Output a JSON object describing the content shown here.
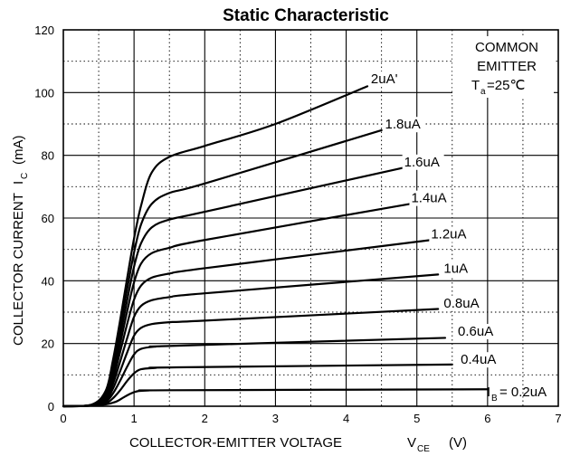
{
  "chart_data": {
    "type": "line",
    "title": "Static Characteristic",
    "xlabel": {
      "main": "COLLECTOR-EMITTER VOLTAGE",
      "symbol": "V",
      "subscript": "CE",
      "unit": "(V)"
    },
    "ylabel": {
      "main": "COLLECTOR CURRENT",
      "symbol": "I",
      "subscript": "C",
      "unit": "(mA)"
    },
    "xlim": [
      0,
      7
    ],
    "ylim": [
      0,
      120
    ],
    "xticks": [
      0,
      1,
      2,
      3,
      4,
      5,
      6,
      7
    ],
    "yticks": [
      0,
      20,
      40,
      60,
      80,
      100,
      120
    ],
    "grid": true,
    "annotation": {
      "line1": "COMMON",
      "line2": "EMITTER",
      "temp_symbol": "T",
      "temp_subscript": "a",
      "temp_value": "=25℃"
    },
    "ib_label": {
      "symbol": "I",
      "subscript": "B",
      "value": "= 0.2uA"
    },
    "series": [
      {
        "name": "0.2uA",
        "label": "",
        "x": [
          0,
          0.4,
          0.6,
          0.75,
          0.85,
          0.95,
          1.05,
          1.2,
          1.5,
          6.0
        ],
        "y": [
          0,
          0.2,
          0.6,
          1.5,
          2.8,
          4.0,
          4.8,
          5.0,
          5.1,
          5.4
        ]
      },
      {
        "name": "0.4uA",
        "label": "0.4uA",
        "x": [
          0,
          0.4,
          0.6,
          0.7,
          0.8,
          0.9,
          1.0,
          1.1,
          1.3,
          1.6,
          5.5
        ],
        "y": [
          0,
          0.2,
          1.0,
          2.5,
          5.0,
          8.0,
          10.5,
          11.8,
          12.2,
          12.4,
          13.3
        ]
      },
      {
        "name": "0.6uA",
        "label": "0.6uA",
        "x": [
          0,
          0.4,
          0.6,
          0.7,
          0.8,
          0.9,
          1.0,
          1.1,
          1.3,
          1.6,
          5.4
        ],
        "y": [
          0,
          0.2,
          1.5,
          4.0,
          8.0,
          12.5,
          16.5,
          18.3,
          19.0,
          19.3,
          21.8
        ]
      },
      {
        "name": "0.8uA",
        "label": "0.8uA",
        "x": [
          0,
          0.4,
          0.6,
          0.7,
          0.8,
          0.9,
          1.0,
          1.1,
          1.25,
          1.5,
          2.0,
          5.3
        ],
        "y": [
          0,
          0.3,
          2.0,
          5.5,
          11.0,
          17.0,
          22.5,
          25.0,
          26.2,
          26.8,
          27.3,
          31.0
        ]
      },
      {
        "name": "1uA",
        "label": "1uA",
        "x": [
          0,
          0.4,
          0.6,
          0.7,
          0.8,
          0.9,
          1.0,
          1.1,
          1.25,
          1.5,
          2.0,
          5.3
        ],
        "y": [
          0,
          0.3,
          2.5,
          7.0,
          14.0,
          21.5,
          28.5,
          32.0,
          33.8,
          34.8,
          36.0,
          42.0
        ]
      },
      {
        "name": "1.2uA",
        "label": "1.2uA",
        "x": [
          0,
          0.4,
          0.6,
          0.7,
          0.8,
          0.9,
          1.0,
          1.1,
          1.25,
          1.5,
          2.0,
          5.2
        ],
        "y": [
          0,
          0.4,
          3.0,
          8.5,
          17.0,
          26.0,
          34.0,
          38.5,
          41.0,
          42.3,
          44.0,
          53.0
        ]
      },
      {
        "name": "1.4uA",
        "label": "1.4uA",
        "x": [
          0,
          0.4,
          0.6,
          0.7,
          0.8,
          0.9,
          1.0,
          1.1,
          1.25,
          1.5,
          2.0,
          4.9
        ],
        "y": [
          0,
          0.4,
          3.5,
          10.0,
          19.5,
          30.0,
          39.5,
          45.5,
          48.8,
          50.5,
          53.0,
          64.5
        ]
      },
      {
        "name": "1.6uA",
        "label": "1.6uA",
        "x": [
          0,
          0.4,
          0.6,
          0.7,
          0.8,
          0.9,
          1.0,
          1.1,
          1.25,
          1.5,
          2.0,
          4.8
        ],
        "y": [
          0,
          0.5,
          4.0,
          11.5,
          22.0,
          33.5,
          44.5,
          52.0,
          57.0,
          59.5,
          62.0,
          76.0
        ]
      },
      {
        "name": "1.8uA",
        "label": "1.8uA",
        "x": [
          0,
          0.4,
          0.6,
          0.7,
          0.8,
          0.9,
          1.0,
          1.1,
          1.25,
          1.5,
          2.0,
          4.5
        ],
        "y": [
          0,
          0.5,
          4.5,
          13.0,
          24.5,
          37.0,
          49.0,
          58.0,
          64.5,
          68.0,
          71.0,
          88.0
        ]
      },
      {
        "name": "2uA",
        "label": "2uA'",
        "x": [
          0,
          0.4,
          0.6,
          0.7,
          0.8,
          0.9,
          1.0,
          1.1,
          1.25,
          1.5,
          2.0,
          3.0,
          4.3
        ],
        "y": [
          0,
          0.5,
          5.0,
          14.5,
          27.0,
          40.5,
          53.5,
          64.0,
          74.5,
          79.5,
          83.0,
          90.0,
          102.0
        ]
      }
    ],
    "label_positions": [
      {
        "series": "0.4uA",
        "x": 5.62,
        "y": 13.5
      },
      {
        "series": "0.6uA",
        "x": 5.58,
        "y": 22.5
      },
      {
        "series": "0.8uA",
        "x": 5.38,
        "y": 31.5
      },
      {
        "series": "1uA",
        "x": 5.38,
        "y": 42.5
      },
      {
        "series": "1.2uA",
        "x": 5.2,
        "y": 53.5
      },
      {
        "series": "1.4uA",
        "x": 4.92,
        "y": 65.0
      },
      {
        "series": "1.6uA",
        "x": 4.82,
        "y": 76.5
      },
      {
        "series": "1.8uA",
        "x": 4.55,
        "y": 88.5
      },
      {
        "series": "2uA",
        "x": 4.35,
        "y": 103.0
      }
    ]
  }
}
